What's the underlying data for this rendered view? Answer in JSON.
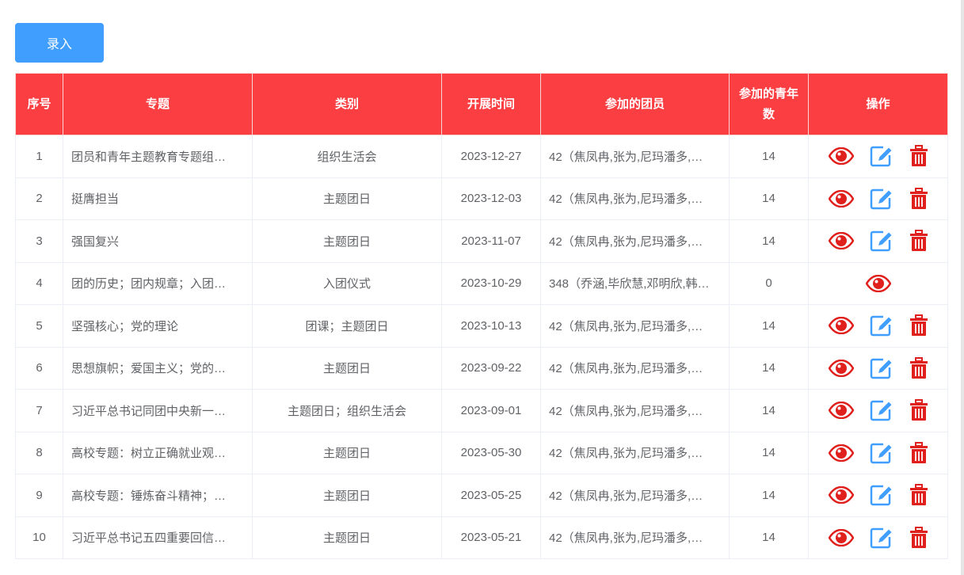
{
  "toolbar": {
    "add_label": "录入"
  },
  "columns": [
    "序号",
    "专题",
    "类别",
    "开展时间",
    "参加的团员",
    "参加的青年数",
    "操作"
  ],
  "colors": {
    "header": "#fb3e42",
    "primary": "#409eff",
    "view": "#e0201c",
    "edit": "#409eff",
    "delete": "#e0201c"
  },
  "rows": [
    {
      "no": "1",
      "topic": "团员和青年主题教育专题组…",
      "category": "组织生活会",
      "date": "2023-12-27",
      "members": "42（焦凤冉,张为,尼玛潘多,…",
      "youth": "14",
      "actions": [
        "view",
        "edit",
        "delete"
      ]
    },
    {
      "no": "2",
      "topic": "挺膺担当",
      "category": "主题团日",
      "date": "2023-12-03",
      "members": "42（焦凤冉,张为,尼玛潘多,…",
      "youth": "14",
      "actions": [
        "view",
        "edit",
        "delete"
      ]
    },
    {
      "no": "3",
      "topic": "强国复兴",
      "category": "主题团日",
      "date": "2023-11-07",
      "members": "42（焦凤冉,张为,尼玛潘多,…",
      "youth": "14",
      "actions": [
        "view",
        "edit",
        "delete"
      ]
    },
    {
      "no": "4",
      "topic": "团的历史；团内规章；入团…",
      "category": "入团仪式",
      "date": "2023-10-29",
      "members": "348（乔涵,毕欣慧,邓明欣,韩…",
      "youth": "0",
      "actions": [
        "view"
      ]
    },
    {
      "no": "5",
      "topic": "坚强核心；党的理论",
      "category": "团课；主题团日",
      "date": "2023-10-13",
      "members": "42（焦凤冉,张为,尼玛潘多,…",
      "youth": "14",
      "actions": [
        "view",
        "edit",
        "delete"
      ]
    },
    {
      "no": "6",
      "topic": "思想旗帜；爱国主义；党的…",
      "category": "主题团日",
      "date": "2023-09-22",
      "members": "42（焦凤冉,张为,尼玛潘多,…",
      "youth": "14",
      "actions": [
        "view",
        "edit",
        "delete"
      ]
    },
    {
      "no": "7",
      "topic": "习近平总书记同团中央新一…",
      "category": "主题团日；组织生活会",
      "date": "2023-09-01",
      "members": "42（焦凤冉,张为,尼玛潘多,…",
      "youth": "14",
      "actions": [
        "view",
        "edit",
        "delete"
      ]
    },
    {
      "no": "8",
      "topic": "高校专题：树立正确就业观…",
      "category": "主题团日",
      "date": "2023-05-30",
      "members": "42（焦凤冉,张为,尼玛潘多,…",
      "youth": "14",
      "actions": [
        "view",
        "edit",
        "delete"
      ]
    },
    {
      "no": "9",
      "topic": "高校专题：锤炼奋斗精神；…",
      "category": "主题团日",
      "date": "2023-05-25",
      "members": "42（焦凤冉,张为,尼玛潘多,…",
      "youth": "14",
      "actions": [
        "view",
        "edit",
        "delete"
      ]
    },
    {
      "no": "10",
      "topic": "习近平总书记五四重要回信…",
      "category": "主题团日",
      "date": "2023-05-21",
      "members": "42（焦凤冉,张为,尼玛潘多,…",
      "youth": "14",
      "actions": [
        "view",
        "edit",
        "delete"
      ]
    }
  ]
}
